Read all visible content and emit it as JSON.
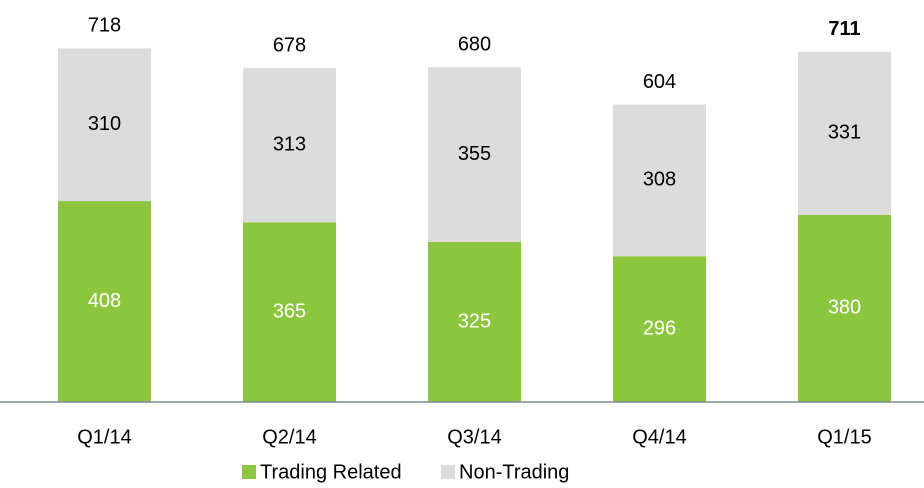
{
  "chart_data": {
    "type": "stacked_bar",
    "categories": [
      "Q1/14",
      "Q2/14",
      "Q3/14",
      "Q4/14",
      "Q1/15"
    ],
    "series": [
      {
        "name": "Trading Related",
        "color": "#8cc63f",
        "values": [
          408,
          365,
          325,
          296,
          380
        ]
      },
      {
        "name": "Non-Trading",
        "color": "#dcdcdc",
        "values": [
          310,
          313,
          355,
          308,
          331
        ]
      }
    ],
    "totals": [
      718,
      678,
      680,
      604,
      711
    ],
    "ylim": [
      0,
      800
    ],
    "legend": "bottom"
  }
}
